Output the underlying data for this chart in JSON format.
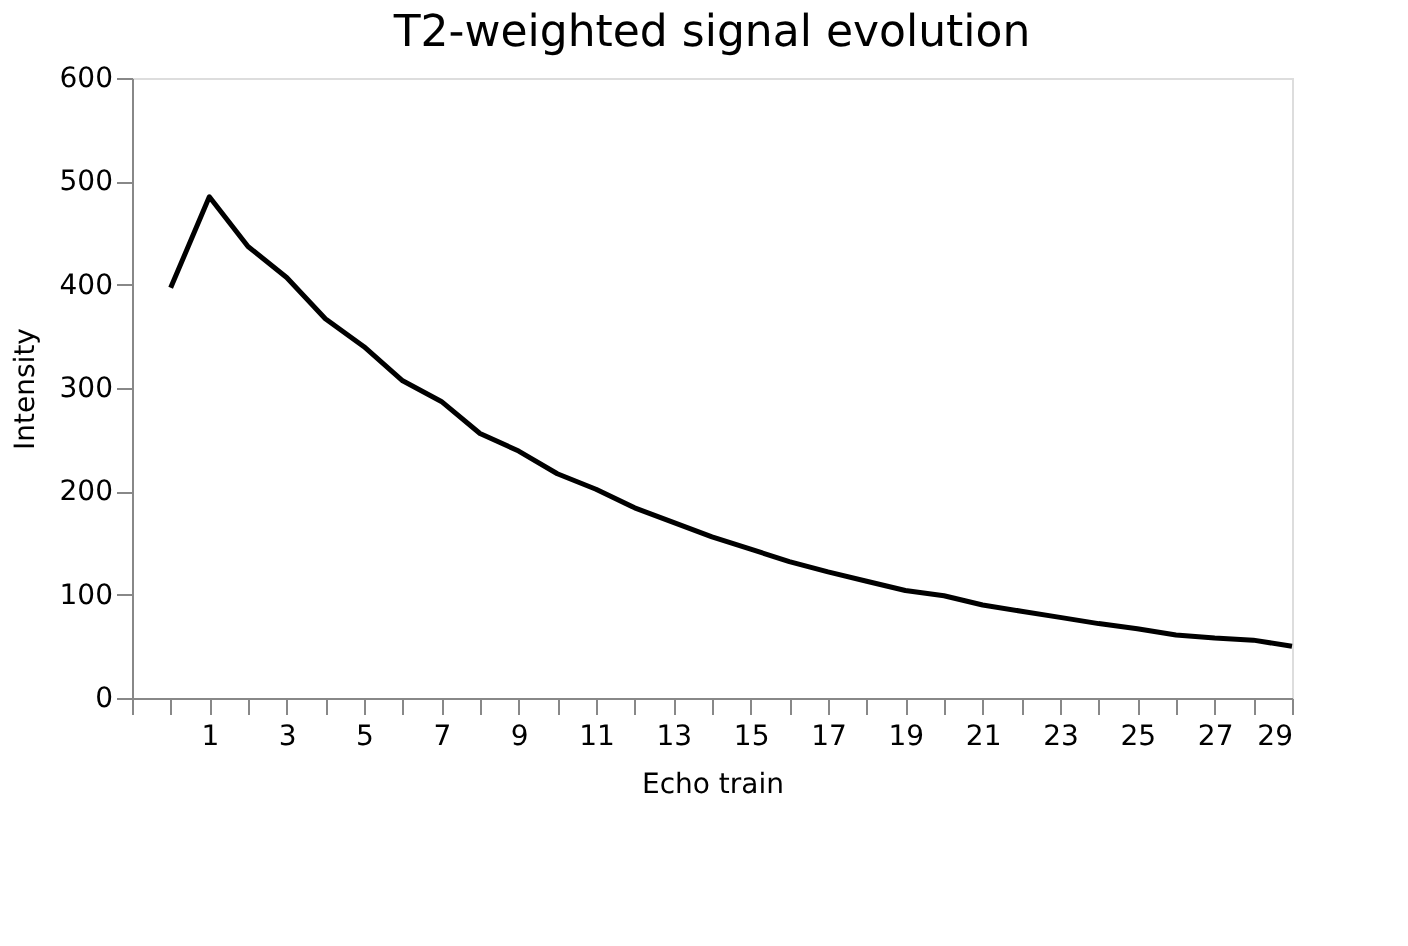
{
  "chart_data": {
    "type": "line",
    "title": "T2-weighted signal evolution",
    "xlabel": "Echo train",
    "ylabel": "Intensity",
    "x": [
      0,
      1,
      2,
      3,
      4,
      5,
      6,
      7,
      8,
      9,
      10,
      11,
      12,
      13,
      14,
      15,
      16,
      17,
      18,
      19,
      20,
      21,
      22,
      23,
      24,
      25,
      26,
      27,
      28,
      29
    ],
    "series": [
      {
        "color": "#000000",
        "values": [
          397,
          485,
          437,
          407,
          367,
          340,
          307,
          287,
          256,
          239,
          217,
          202,
          184,
          170,
          156,
          144,
          132,
          122,
          113,
          104,
          99,
          90,
          84,
          78,
          72,
          67,
          61,
          58,
          56,
          50
        ]
      }
    ],
    "xlim": [
      -1,
      29
    ],
    "xticks": [
      {
        "value": -1,
        "label": null
      },
      {
        "value": 0,
        "label": null
      },
      1,
      {
        "value": 2,
        "label": null
      },
      3,
      {
        "value": 4,
        "label": null
      },
      5,
      {
        "value": 6,
        "label": null
      },
      7,
      {
        "value": 8,
        "label": null
      },
      9,
      {
        "value": 10,
        "label": null
      },
      11,
      {
        "value": 12,
        "label": null
      },
      13,
      {
        "value": 14,
        "label": null
      },
      15,
      {
        "value": 16,
        "label": null
      },
      17,
      {
        "value": 18,
        "label": null
      },
      19,
      {
        "value": 20,
        "label": null
      },
      21,
      {
        "value": 22,
        "label": null
      },
      23,
      {
        "value": 24,
        "label": null
      },
      25,
      {
        "value": 26,
        "label": null
      },
      27,
      {
        "value": 28,
        "label": null
      },
      29
    ],
    "ylim": [
      0,
      600
    ],
    "yticks": [
      0,
      100,
      200,
      300,
      400,
      500,
      600
    ],
    "grid": false,
    "legend": false,
    "marker": "none",
    "line_style": "solid"
  }
}
